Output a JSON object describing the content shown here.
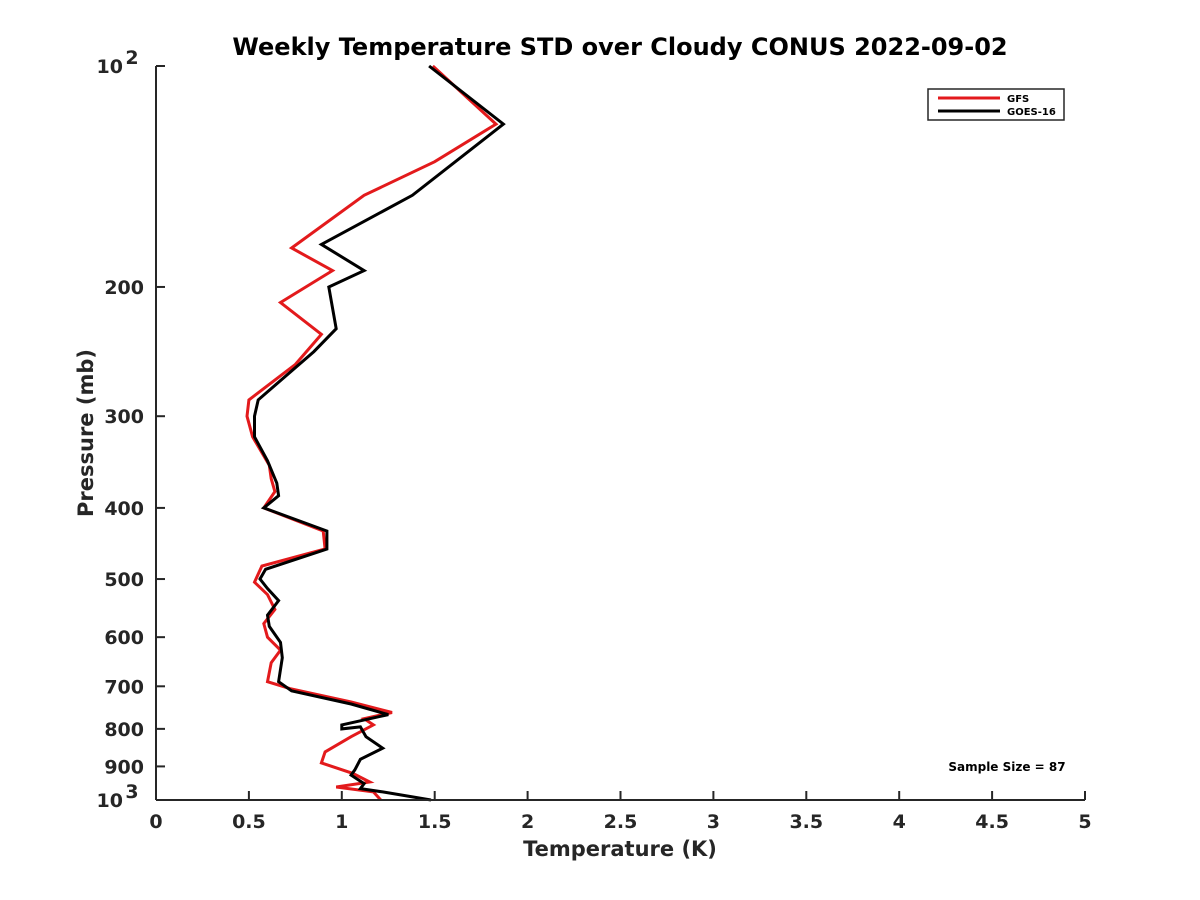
{
  "chart_data": {
    "type": "line",
    "title": "Weekly Temperature STD over Cloudy CONUS 2022-09-02",
    "xlabel": "Temperature (K)",
    "ylabel": "Pressure (mb)",
    "xlim": [
      0,
      5
    ],
    "ylim": [
      100,
      1000
    ],
    "y_scale": "log",
    "y_reversed": true,
    "grid": false,
    "legend_position": "top-right",
    "x_ticks": [
      {
        "value": 0,
        "label": "0"
      },
      {
        "value": 0.5,
        "label": "0.5"
      },
      {
        "value": 1,
        "label": "1"
      },
      {
        "value": 1.5,
        "label": "1.5"
      },
      {
        "value": 2,
        "label": "2"
      },
      {
        "value": 2.5,
        "label": "2.5"
      },
      {
        "value": 3,
        "label": "3"
      },
      {
        "value": 3.5,
        "label": "3.5"
      },
      {
        "value": 4,
        "label": "4"
      },
      {
        "value": 4.5,
        "label": "4.5"
      },
      {
        "value": 5,
        "label": "5"
      }
    ],
    "y_ticks": [
      {
        "value": 100,
        "base": "10",
        "exp": "2"
      },
      {
        "value": 200,
        "label": "200"
      },
      {
        "value": 300,
        "label": "300"
      },
      {
        "value": 400,
        "label": "400"
      },
      {
        "value": 500,
        "label": "500"
      },
      {
        "value": 600,
        "label": "600"
      },
      {
        "value": 700,
        "label": "700"
      },
      {
        "value": 800,
        "label": "800"
      },
      {
        "value": 900,
        "label": "900"
      },
      {
        "value": 1000,
        "base": "10",
        "exp": "3"
      }
    ],
    "annotation": "Sample Size = 87",
    "series": [
      {
        "name": "GFS",
        "color": "#e31a1c",
        "points": [
          [
            1.49,
            100
          ],
          [
            1.83,
            120
          ],
          [
            1.5,
            135
          ],
          [
            1.12,
            150
          ],
          [
            0.73,
            177
          ],
          [
            0.95,
            190
          ],
          [
            0.67,
            210
          ],
          [
            0.89,
            232
          ],
          [
            0.75,
            255
          ],
          [
            0.5,
            285
          ],
          [
            0.49,
            300
          ],
          [
            0.52,
            320
          ],
          [
            0.61,
            350
          ],
          [
            0.62,
            365
          ],
          [
            0.64,
            380
          ],
          [
            0.58,
            400
          ],
          [
            0.9,
            430
          ],
          [
            0.91,
            455
          ],
          [
            0.57,
            480
          ],
          [
            0.53,
            505
          ],
          [
            0.6,
            525
          ],
          [
            0.64,
            550
          ],
          [
            0.58,
            575
          ],
          [
            0.6,
            600
          ],
          [
            0.67,
            625
          ],
          [
            0.62,
            650
          ],
          [
            0.6,
            690
          ],
          [
            0.72,
            705
          ],
          [
            1.05,
            735
          ],
          [
            1.27,
            760
          ],
          [
            1.12,
            775
          ],
          [
            1.17,
            790
          ],
          [
            1.05,
            820
          ],
          [
            0.91,
            860
          ],
          [
            0.89,
            890
          ],
          [
            1.06,
            920
          ],
          [
            1.15,
            945
          ],
          [
            0.97,
            960
          ],
          [
            1.17,
            975
          ],
          [
            1.21,
            1000
          ]
        ]
      },
      {
        "name": "GOES-16",
        "color": "#000000",
        "points": [
          [
            1.47,
            100
          ],
          [
            1.87,
            120
          ],
          [
            1.38,
            150
          ],
          [
            0.89,
            175
          ],
          [
            1.12,
            190
          ],
          [
            0.93,
            200
          ],
          [
            0.97,
            228
          ],
          [
            0.85,
            245
          ],
          [
            0.55,
            285
          ],
          [
            0.53,
            300
          ],
          [
            0.53,
            320
          ],
          [
            0.6,
            345
          ],
          [
            0.65,
            370
          ],
          [
            0.66,
            385
          ],
          [
            0.58,
            400
          ],
          [
            0.92,
            430
          ],
          [
            0.92,
            455
          ],
          [
            0.59,
            485
          ],
          [
            0.56,
            500
          ],
          [
            0.6,
            515
          ],
          [
            0.66,
            535
          ],
          [
            0.6,
            560
          ],
          [
            0.61,
            580
          ],
          [
            0.67,
            610
          ],
          [
            0.68,
            640
          ],
          [
            0.66,
            690
          ],
          [
            0.73,
            710
          ],
          [
            1.05,
            740
          ],
          [
            1.25,
            765
          ],
          [
            1.0,
            790
          ],
          [
            1.0,
            800
          ],
          [
            1.1,
            795
          ],
          [
            1.13,
            820
          ],
          [
            1.22,
            850
          ],
          [
            1.1,
            880
          ],
          [
            1.07,
            910
          ],
          [
            1.05,
            925
          ],
          [
            1.12,
            950
          ],
          [
            1.1,
            965
          ],
          [
            1.22,
            975
          ],
          [
            1.48,
            1000
          ]
        ]
      }
    ]
  }
}
